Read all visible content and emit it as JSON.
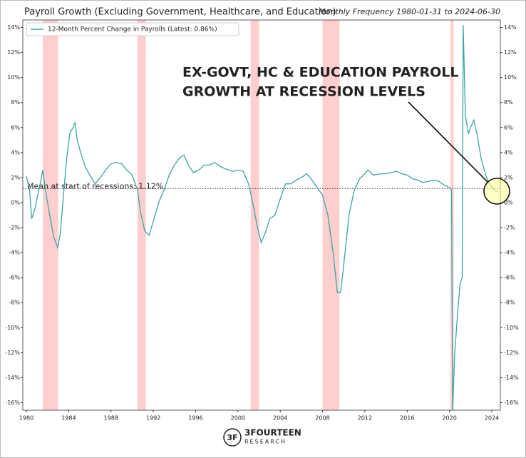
{
  "chart_data": {
    "type": "line",
    "title": "Payroll Growth (Excluding Government, Healthcare, and Education)",
    "subtitle": "Monthly Frequency 1980-01-31 to 2024-06-30",
    "annotation": [
      "EX-GOVT, HC & EDUCATION PAYROLL",
      "GROWTH AT RECESSION LEVELS"
    ],
    "mean_line": 1.12,
    "mean_label": "Mean at start of recessions: 1.12%",
    "recessions": [
      [
        1981.55,
        1983.0
      ],
      [
        1990.5,
        1991.3
      ],
      [
        2001.2,
        2002.0
      ],
      [
        2008.0,
        2009.6
      ],
      [
        2020.1,
        2020.4
      ]
    ],
    "recession_color": "#ffc9c9",
    "legend": "upper left",
    "logo": [
      "3FOURTEEN",
      "RESEARCH"
    ],
    "xlim": [
      1979.66,
      2024.81
    ],
    "xticks": [
      1980,
      1984,
      1988,
      1992,
      1996,
      2000,
      2004,
      2008,
      2012,
      2016,
      2020,
      2024
    ],
    "ylim": [
      -16.6,
      14.6
    ],
    "yticks": [
      {
        "value": -16,
        "label": "-16%"
      },
      {
        "value": -14,
        "label": "-14%"
      },
      {
        "value": -12,
        "label": "-12%"
      },
      {
        "value": -10,
        "label": "-10%"
      },
      {
        "value": -8,
        "label": "-8%"
      },
      {
        "value": -6,
        "label": "-6%"
      },
      {
        "value": -4,
        "label": "-4%"
      },
      {
        "value": -2,
        "label": "-2%"
      },
      {
        "value": 0,
        "label": "0%"
      },
      {
        "value": 2,
        "label": "2%"
      },
      {
        "value": 4,
        "label": "4%"
      },
      {
        "value": 6,
        "label": "6%"
      },
      {
        "value": 8,
        "label": "8%"
      },
      {
        "value": 10,
        "label": "10%"
      },
      {
        "value": 12,
        "label": "12%"
      },
      {
        "value": 14,
        "label": "14%"
      }
    ],
    "x": [
      1980.0,
      1980.3,
      1980.5,
      1980.8,
      1981.0,
      1981.3,
      1981.55,
      1981.8,
      1982.2,
      1982.6,
      1982.95,
      1983.2,
      1983.5,
      1983.8,
      1984.1,
      1984.4,
      1984.6,
      1984.8,
      1985.2,
      1985.6,
      1986.0,
      1986.5,
      1987.0,
      1987.5,
      1988.0,
      1988.5,
      1989.0,
      1989.5,
      1990.0,
      1990.5,
      1990.8,
      1991.2,
      1991.6,
      1992.0,
      1992.5,
      1993.0,
      1993.5,
      1994.0,
      1994.5,
      1994.9,
      1995.3,
      1995.8,
      1996.3,
      1996.8,
      1997.3,
      1997.8,
      1998.3,
      1998.8,
      1999.5,
      2000.0,
      2000.5,
      2001.0,
      2001.4,
      2001.8,
      2002.2,
      2002.6,
      2003.0,
      2003.5,
      2004.0,
      2004.5,
      2005.0,
      2005.5,
      2006.0,
      2006.5,
      2007.0,
      2007.5,
      2008.0,
      2008.5,
      2009.0,
      2009.4,
      2009.7,
      2010.0,
      2010.5,
      2011.0,
      2011.5,
      2012.0,
      2012.3,
      2012.8,
      2013.5,
      2014.0,
      2014.5,
      2015.0,
      2015.5,
      2016.0,
      2016.5,
      2017.0,
      2017.5,
      2018.0,
      2018.5,
      2019.0,
      2019.5,
      2020.0,
      2020.2,
      2020.3,
      2020.5,
      2020.8,
      2021.0,
      2021.2,
      2021.3,
      2021.5,
      2021.8,
      2022.0,
      2022.3,
      2022.6,
      2023.0,
      2023.5,
      2024.0,
      2024.5
    ],
    "series": [
      {
        "name": "12-Month Percent Change in Payrolls (Latest: 0.86%)",
        "color": "#3aa5a0",
        "values": [
          2.1,
          1.0,
          -1.3,
          -0.5,
          0.3,
          1.5,
          2.6,
          1.0,
          -1.0,
          -2.8,
          -3.6,
          -2.5,
          0.5,
          3.5,
          5.5,
          6.0,
          6.4,
          5.0,
          3.8,
          2.8,
          2.2,
          1.5,
          2.0,
          2.6,
          3.1,
          3.2,
          3.1,
          2.6,
          2.2,
          1.0,
          -0.8,
          -2.3,
          -2.6,
          -1.5,
          0.0,
          1.0,
          2.2,
          3.0,
          3.6,
          3.8,
          3.0,
          2.4,
          2.6,
          3.0,
          3.0,
          3.2,
          2.9,
          2.7,
          2.5,
          2.6,
          2.5,
          1.5,
          0.0,
          -1.8,
          -3.2,
          -2.4,
          -1.3,
          -1.0,
          0.3,
          1.5,
          1.5,
          1.8,
          2.0,
          2.3,
          1.8,
          1.2,
          0.6,
          -1.0,
          -4.0,
          -7.2,
          -7.2,
          -5.0,
          -1.0,
          1.0,
          1.9,
          2.3,
          2.6,
          2.2,
          2.3,
          2.3,
          2.4,
          2.5,
          2.3,
          2.2,
          1.9,
          1.8,
          1.6,
          1.7,
          1.8,
          1.7,
          1.4,
          1.2,
          1.0,
          -16.6,
          -12.0,
          -8.5,
          -6.5,
          -6.0,
          14.2,
          7.0,
          5.5,
          6.0,
          6.6,
          5.5,
          3.5,
          2.0,
          1.2,
          0.86
        ]
      }
    ]
  }
}
